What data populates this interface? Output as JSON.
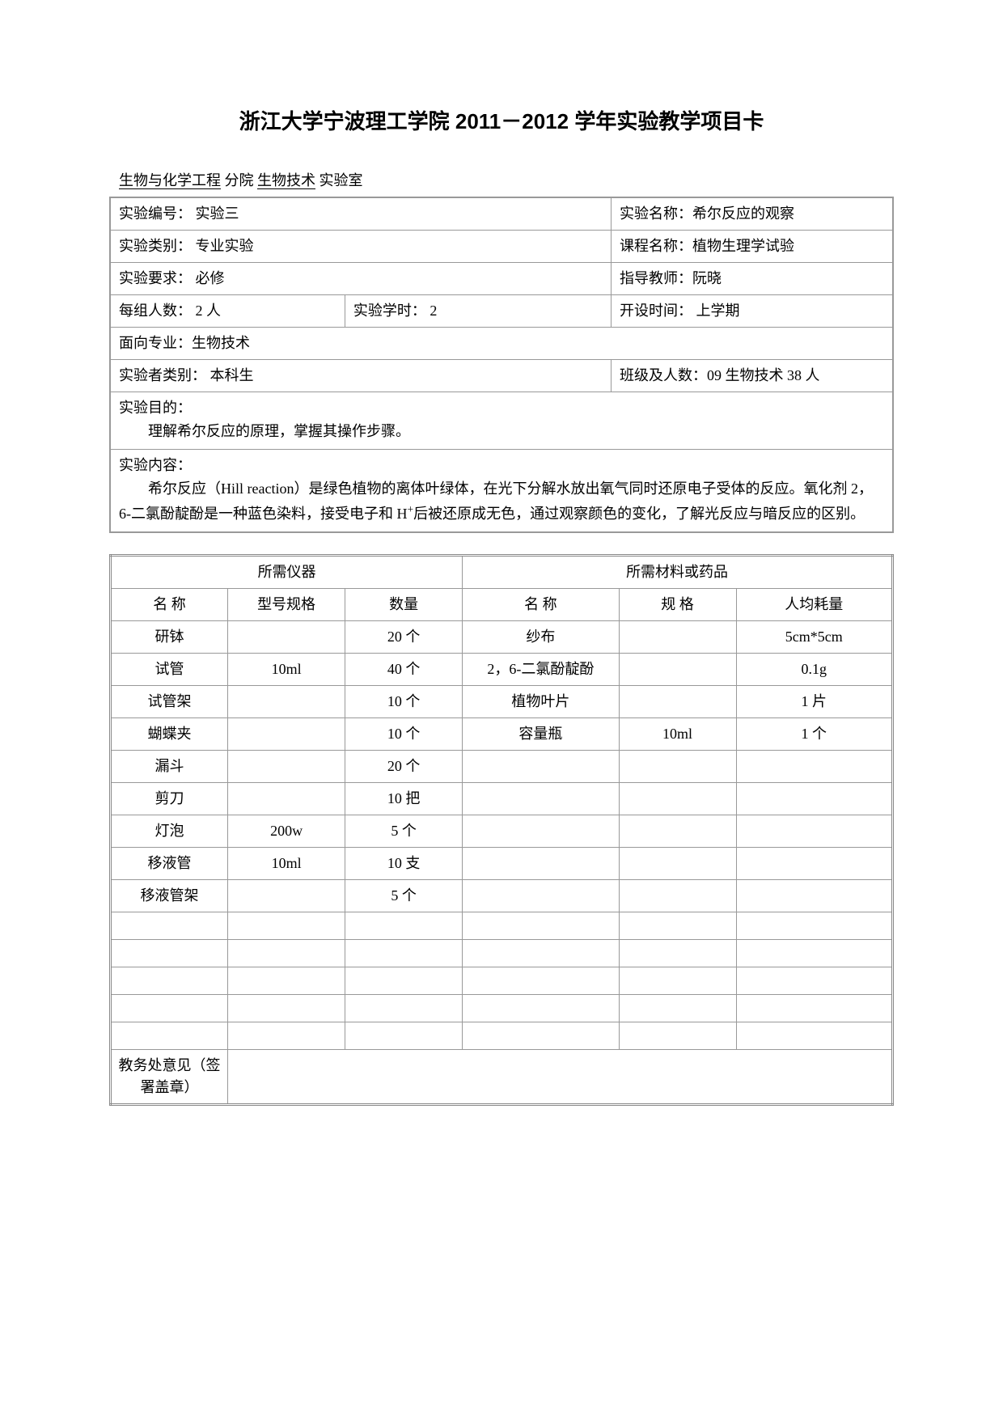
{
  "title": "浙江大学宁波理工学院 2011－2012 学年实验教学项目卡",
  "subtitle_prefix": "  ",
  "subtitle_dept": "生物与化学工程",
  "subtitle_mid1": "  分院  ",
  "subtitle_lab": "生物技术",
  "subtitle_mid2": "    实验室",
  "info": {
    "exp_no_label": "实验编号：   实验三",
    "exp_name_label": "实验名称：希尔反应的观察",
    "exp_type_label": "实验类别：   专业实验",
    "course_name_label": "课程名称：植物生理学试验",
    "exp_req_label": "实验要求：   必修",
    "teacher_label": "指导教师：阮晓",
    "group_size_label": "每组人数：              2 人",
    "hours_label": "实验学时：   2",
    "time_label": "开设时间：  上学期",
    "major_label": "面向专业：生物技术",
    "student_type_label": "实验者类别：   本科生",
    "class_size_label": "班级及人数：09 生物技术   38 人"
  },
  "purpose": {
    "heading": "实验目的：",
    "text": "理解希尔反应的原理，掌握其操作步骤。"
  },
  "content": {
    "heading": "实验内容：",
    "text_part1": "希尔反应（Hill  reaction）是绿色植物的离体叶绿体，在光下分解水放出氧气同时还原电子受体的反应。氧化剂 2，6-二氯酚靛酚是一种蓝色染料，接受电子和 H",
    "text_sup": "+",
    "text_part2": "后被还原成无色，通过观察颜色的变化，了解光反应与暗反应的区别。"
  },
  "materials": {
    "left_header": "所需仪器",
    "right_header": "所需材料或药品",
    "col_name": "名  称",
    "col_spec": "型号规格",
    "col_qty": "数量",
    "col_mat_name": "名  称",
    "col_mat_spec": "规  格",
    "col_mat_usage": "人均耗量",
    "rows": [
      {
        "n1": "研钵",
        "s1": "",
        "q1": "20 个",
        "n2": "纱布",
        "s2": "",
        "u2": "5cm*5cm"
      },
      {
        "n1": "试管",
        "s1": "10ml",
        "q1": "40 个",
        "n2": "2，6-二氯酚靛酚",
        "s2": "",
        "u2": "0.1g"
      },
      {
        "n1": "试管架",
        "s1": "",
        "q1": "10 个",
        "n2": "植物叶片",
        "s2": "",
        "u2": "1 片"
      },
      {
        "n1": "蝴蝶夹",
        "s1": "",
        "q1": "10 个",
        "n2": "容量瓶",
        "s2": "10ml",
        "u2": "1 个"
      },
      {
        "n1": "漏斗",
        "s1": "",
        "q1": "20 个",
        "n2": "",
        "s2": "",
        "u2": ""
      },
      {
        "n1": "剪刀",
        "s1": "",
        "q1": "10 把",
        "n2": "",
        "s2": "",
        "u2": ""
      },
      {
        "n1": "灯泡",
        "s1": "200w",
        "q1": "5 个",
        "n2": "",
        "s2": "",
        "u2": ""
      },
      {
        "n1": "移液管",
        "s1": "10ml",
        "q1": "10 支",
        "n2": "",
        "s2": "",
        "u2": ""
      },
      {
        "n1": "移液管架",
        "s1": "",
        "q1": "5 个",
        "n2": "",
        "s2": "",
        "u2": ""
      },
      {
        "n1": "",
        "s1": "",
        "q1": "",
        "n2": "",
        "s2": "",
        "u2": ""
      },
      {
        "n1": "",
        "s1": "",
        "q1": "",
        "n2": "",
        "s2": "",
        "u2": ""
      },
      {
        "n1": "",
        "s1": "",
        "q1": "",
        "n2": "",
        "s2": "",
        "u2": ""
      },
      {
        "n1": "",
        "s1": "",
        "q1": "",
        "n2": "",
        "s2": "",
        "u2": ""
      },
      {
        "n1": "",
        "s1": "",
        "q1": "",
        "n2": "",
        "s2": "",
        "u2": ""
      }
    ],
    "footer_label": "教务处意见（签署盖章）"
  }
}
